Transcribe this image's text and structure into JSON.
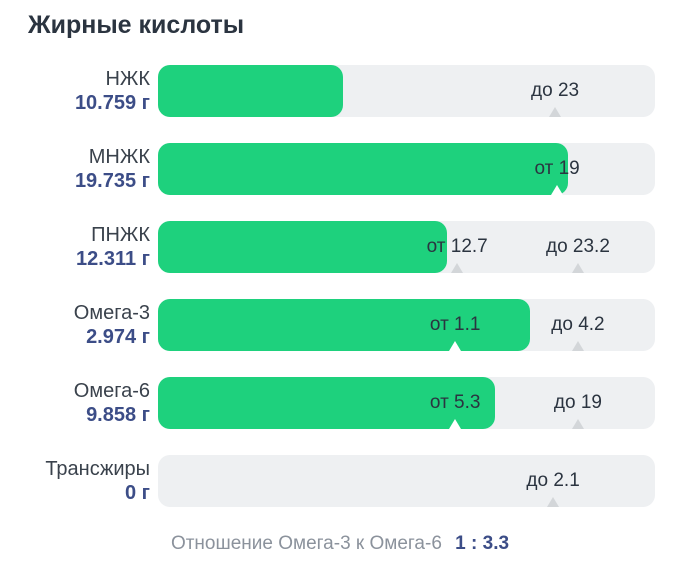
{
  "title": "Жирные кислоты",
  "colors": {
    "bar_green": "#1ed17d",
    "track_gray": "#eef0f2",
    "marker_triangle_gray": "#d3d6d9",
    "marker_triangle_covered": "#ffffff",
    "value_blue": "#3c4d87",
    "name_dark": "#3a424c",
    "title_dark": "#2b3440",
    "footer_gray": "#8b929c"
  },
  "rows": [
    {
      "name": "НЖК",
      "value_label": "10.759 г",
      "fill_pct": 37.2,
      "markers": [
        {
          "label": "до 23",
          "pos_pct": 79.9
        }
      ]
    },
    {
      "name": "МНЖК",
      "value_label": "19.735 г",
      "fill_pct": 82.5,
      "markers": [
        {
          "label": "от 19",
          "pos_pct": 80.3
        }
      ]
    },
    {
      "name": "ПНЖК",
      "value_label": "12.311 г",
      "fill_pct": 58.1,
      "markers": [
        {
          "label": "от 12.7",
          "pos_pct": 60.2
        },
        {
          "label": "до 23.2",
          "pos_pct": 84.5
        }
      ]
    },
    {
      "name": "Омега-3",
      "value_label": "2.974 г",
      "fill_pct": 74.8,
      "markers": [
        {
          "label": "от 1.1",
          "pos_pct": 59.8
        },
        {
          "label": "до 4.2",
          "pos_pct": 84.5
        }
      ]
    },
    {
      "name": "Омега-6",
      "value_label": "9.858 г",
      "fill_pct": 67.8,
      "markers": [
        {
          "label": "от 5.3",
          "pos_pct": 59.8
        },
        {
          "label": "до 19",
          "pos_pct": 84.5
        }
      ]
    },
    {
      "name": "Трансжиры",
      "value_label": "0 г",
      "fill_pct": 0,
      "markers": [
        {
          "label": "до 2.1",
          "pos_pct": 79.5
        }
      ]
    }
  ],
  "footer": {
    "text": "Отношение Омега-3 к Омега-6",
    "ratio": "1 : 3.3"
  },
  "chart_data": {
    "type": "bar",
    "orientation": "horizontal",
    "title": "Жирные кислоты",
    "unit": "г",
    "categories": [
      "НЖК",
      "МНЖК",
      "ПНЖК",
      "Омега-3",
      "Омега-6",
      "Трансжиры"
    ],
    "values": [
      10.759,
      19.735,
      12.311,
      2.974,
      9.858,
      0
    ],
    "value_labels": [
      "10.759 г",
      "19.735 г",
      "12.311 г",
      "2.974 г",
      "9.858 г",
      "0 г"
    ],
    "thresholds": [
      {
        "category": "НЖК",
        "max": 23
      },
      {
        "category": "МНЖК",
        "min": 19
      },
      {
        "category": "ПНЖК",
        "min": 12.7,
        "max": 23.2
      },
      {
        "category": "Омега-3",
        "min": 1.1,
        "max": 4.2
      },
      {
        "category": "Омега-6",
        "min": 5.3,
        "max": 19
      },
      {
        "category": "Трансжиры",
        "max": 2.1
      }
    ],
    "annotation": "Отношение Омега-3 к Омега-6 1 : 3.3",
    "legend": false,
    "grid": false
  }
}
